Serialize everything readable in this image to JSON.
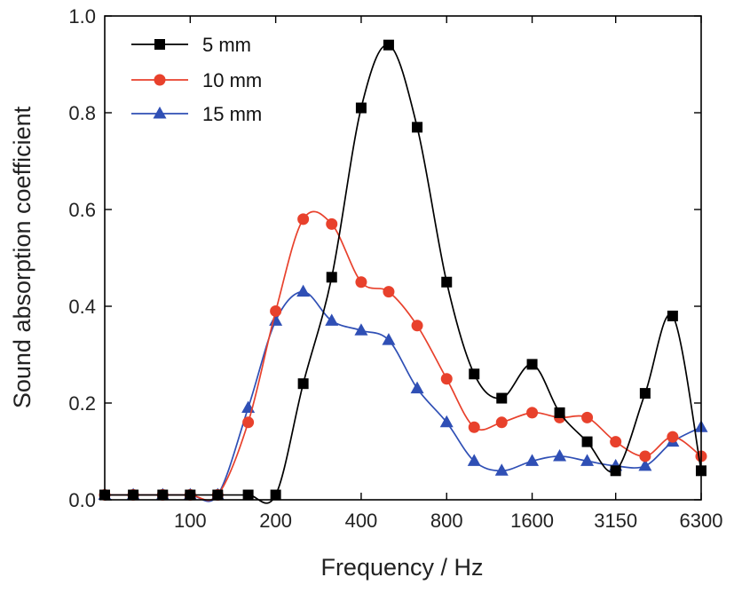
{
  "chart_data": {
    "type": "line",
    "title": "",
    "xlabel": "Frequency / Hz",
    "ylabel": "Sound absorption coefficient",
    "ylim": [
      0,
      1.0
    ],
    "x_scale": "log",
    "x_ticks": [
      "100",
      "200",
      "400",
      "800",
      "1600",
      "3150",
      "6300"
    ],
    "y_ticks": [
      "0.0",
      "0.2",
      "0.4",
      "0.6",
      "0.8",
      "1.0"
    ],
    "legend_position": "top-left",
    "x": [
      50,
      63,
      80,
      100,
      125,
      160,
      200,
      250,
      315,
      400,
      500,
      630,
      800,
      1000,
      1250,
      1600,
      2000,
      2500,
      3150,
      4000,
      5000,
      6300
    ],
    "series": [
      {
        "name": "5 mm",
        "color": "#000000",
        "marker": "square",
        "values": [
          0.01,
          0.01,
          0.01,
          0.01,
          0.01,
          0.01,
          0.01,
          0.24,
          0.46,
          0.81,
          0.94,
          0.77,
          0.45,
          0.26,
          0.21,
          0.28,
          0.18,
          0.12,
          0.06,
          0.22,
          0.38,
          0.06
        ]
      },
      {
        "name": "10 mm",
        "color": "#e8412c",
        "marker": "circle",
        "values": [
          0.01,
          0.01,
          0.01,
          0.01,
          0.01,
          0.16,
          0.39,
          0.58,
          0.57,
          0.45,
          0.43,
          0.36,
          0.25,
          0.15,
          0.16,
          0.18,
          0.17,
          0.17,
          0.12,
          0.09,
          0.13,
          0.09
        ]
      },
      {
        "name": "15 mm",
        "color": "#2f4fb5",
        "marker": "triangle",
        "values": [
          0.01,
          0.01,
          0.01,
          0.01,
          0.01,
          0.19,
          0.37,
          0.43,
          0.37,
          0.35,
          0.33,
          0.23,
          0.16,
          0.08,
          0.06,
          0.08,
          0.09,
          0.08,
          0.07,
          0.07,
          0.12,
          0.15
        ]
      }
    ]
  }
}
